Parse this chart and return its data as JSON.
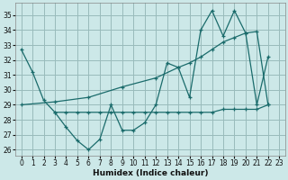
{
  "xlabel": "Humidex (Indice chaleur)",
  "bg_color": "#cce8e8",
  "grid_color": "#99bbbb",
  "line_color": "#1a6b6b",
  "xlim": [
    -0.5,
    23.5
  ],
  "ylim": [
    25.6,
    35.8
  ],
  "xticks": [
    0,
    1,
    2,
    3,
    4,
    5,
    6,
    7,
    8,
    9,
    10,
    11,
    12,
    13,
    14,
    15,
    16,
    17,
    18,
    19,
    20,
    21,
    22,
    23
  ],
  "yticks": [
    26,
    27,
    28,
    29,
    30,
    31,
    32,
    33,
    34,
    35
  ],
  "curve1_x": [
    0,
    1,
    2,
    3,
    4,
    5,
    6,
    7,
    8,
    9,
    10,
    11,
    12,
    13,
    14,
    15,
    16,
    17,
    18,
    19,
    20,
    21,
    22
  ],
  "curve1_y": [
    32.7,
    31.2,
    29.3,
    28.5,
    27.5,
    26.6,
    26.0,
    26.7,
    29.0,
    27.3,
    27.3,
    27.8,
    29.0,
    31.8,
    31.5,
    29.5,
    34.0,
    35.3,
    33.6,
    35.3,
    33.8,
    29.0,
    32.2
  ],
  "curve2_x": [
    3,
    4,
    5,
    6,
    7,
    8,
    9,
    10,
    11,
    12,
    13,
    14,
    15,
    16,
    17,
    18,
    19,
    20,
    21,
    22
  ],
  "curve2_y": [
    28.5,
    28.5,
    28.5,
    28.5,
    28.5,
    28.5,
    28.5,
    28.5,
    28.5,
    28.5,
    28.5,
    28.5,
    28.5,
    28.5,
    28.5,
    28.7,
    28.7,
    28.7,
    28.7,
    29.0
  ],
  "curve3_x": [
    0,
    3,
    6,
    9,
    12,
    14,
    15,
    16,
    17,
    18,
    19,
    20,
    21,
    22
  ],
  "curve3_y": [
    29.0,
    29.2,
    29.5,
    30.2,
    30.8,
    31.5,
    31.8,
    32.2,
    32.7,
    33.2,
    33.5,
    33.8,
    33.9,
    29.0
  ]
}
